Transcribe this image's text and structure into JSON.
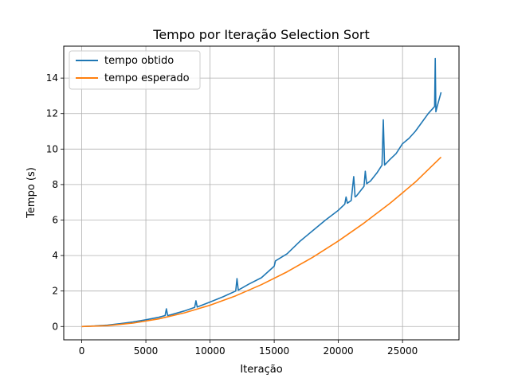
{
  "chart_data": {
    "type": "line",
    "title": "Tempo por Iteração Selection Sort",
    "xlabel": "Iteração",
    "ylabel": "Tempo (s)",
    "xlim": [
      -1400,
      29400
    ],
    "ylim": [
      -0.75,
      15.8
    ],
    "xticks": [
      0,
      5000,
      10000,
      15000,
      20000,
      25000
    ],
    "yticks": [
      0,
      2,
      4,
      6,
      8,
      10,
      12,
      14
    ],
    "grid": true,
    "legend_position": "top-left",
    "series": [
      {
        "name": "tempo obtido",
        "color": "#1f77b4",
        "x": [
          0,
          1000,
          2000,
          3000,
          4000,
          5000,
          6000,
          6500,
          6600,
          6700,
          7000,
          8000,
          8800,
          8900,
          9000,
          10000,
          11000,
          12000,
          12100,
          12200,
          13000,
          14000,
          15000,
          15100,
          16000,
          17000,
          18000,
          19000,
          20000,
          20500,
          20600,
          20700,
          21000,
          21200,
          21300,
          21400,
          22000,
          22100,
          22200,
          22500,
          23000,
          23400,
          23500,
          23600,
          24000,
          24500,
          25000,
          25500,
          26000,
          26500,
          27000,
          27500,
          27550,
          27600,
          27700,
          28000
        ],
        "y": [
          0.0,
          0.03,
          0.08,
          0.16,
          0.26,
          0.38,
          0.52,
          0.62,
          1.0,
          0.62,
          0.67,
          0.88,
          1.08,
          1.45,
          1.1,
          1.38,
          1.67,
          2.0,
          2.7,
          2.05,
          2.38,
          2.75,
          3.4,
          3.7,
          4.1,
          4.8,
          5.4,
          6.0,
          6.55,
          6.9,
          7.3,
          6.95,
          7.1,
          8.45,
          7.3,
          7.35,
          7.9,
          8.75,
          8.05,
          8.2,
          8.65,
          9.1,
          11.65,
          9.1,
          9.4,
          9.75,
          10.3,
          10.6,
          11.0,
          11.5,
          12.0,
          12.4,
          15.1,
          12.1,
          12.4,
          13.2
        ]
      },
      {
        "name": "tempo esperado",
        "color": "#ff7f0e",
        "x": [
          0,
          2000,
          4000,
          6000,
          8000,
          10000,
          12000,
          14000,
          16000,
          18000,
          20000,
          22000,
          24000,
          26000,
          28000
        ],
        "y": [
          0.0,
          0.05,
          0.19,
          0.43,
          0.77,
          1.2,
          1.73,
          2.36,
          3.08,
          3.9,
          4.82,
          5.83,
          6.93,
          8.14,
          9.55
        ]
      }
    ]
  }
}
